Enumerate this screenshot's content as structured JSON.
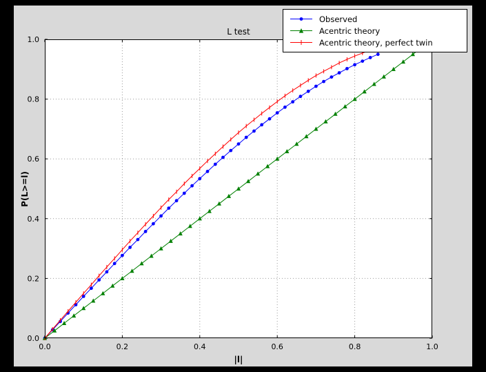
{
  "window": {
    "frame_color": "#000000",
    "figure_background": "#d9d9d9",
    "plot_background": "#ffffff"
  },
  "chart_data": {
    "type": "line",
    "title": "L test",
    "xlabel": "|l|",
    "ylabel": "P(L>=l)",
    "xlim": [
      0.0,
      1.0
    ],
    "ylim": [
      0.0,
      1.0
    ],
    "xticks": [
      0.0,
      0.2,
      0.4,
      0.6,
      0.8,
      1.0
    ],
    "yticks": [
      0.0,
      0.2,
      0.4,
      0.6,
      0.8,
      1.0
    ],
    "xtick_labels": [
      "0.0",
      "0.2",
      "0.4",
      "0.6",
      "0.8",
      "1.0"
    ],
    "ytick_labels": [
      "0.0",
      "0.2",
      "0.4",
      "0.6",
      "0.8",
      "1.0"
    ],
    "grid": true,
    "grid_style": "dotted",
    "legend_position": "upper-right",
    "series": [
      {
        "name": "Observed",
        "color": "#0000ff",
        "marker": "circle",
        "x": [
          0.0,
          0.02,
          0.04,
          0.06,
          0.08,
          0.1,
          0.12,
          0.14,
          0.16,
          0.18,
          0.2,
          0.22,
          0.24,
          0.26,
          0.28,
          0.3,
          0.32,
          0.34,
          0.36,
          0.38,
          0.4,
          0.42,
          0.44,
          0.46,
          0.48,
          0.5,
          0.52,
          0.54,
          0.56,
          0.58,
          0.6,
          0.62,
          0.64,
          0.66,
          0.68,
          0.7,
          0.72,
          0.74,
          0.76,
          0.78,
          0.8,
          0.82,
          0.84,
          0.86
        ],
        "y": [
          0.0,
          0.028,
          0.056,
          0.084,
          0.112,
          0.14,
          0.167,
          0.195,
          0.222,
          0.25,
          0.277,
          0.304,
          0.33,
          0.357,
          0.383,
          0.409,
          0.435,
          0.46,
          0.485,
          0.51,
          0.534,
          0.558,
          0.582,
          0.605,
          0.628,
          0.65,
          0.672,
          0.693,
          0.714,
          0.734,
          0.754,
          0.773,
          0.791,
          0.809,
          0.826,
          0.843,
          0.859,
          0.874,
          0.888,
          0.902,
          0.915,
          0.927,
          0.939,
          0.95
        ]
      },
      {
        "name": "Acentric theory",
        "color": "#008000",
        "marker": "triangle_up",
        "x": [
          0.0,
          0.025,
          0.05,
          0.075,
          0.1,
          0.125,
          0.15,
          0.175,
          0.2,
          0.225,
          0.25,
          0.275,
          0.3,
          0.325,
          0.35,
          0.375,
          0.4,
          0.425,
          0.45,
          0.475,
          0.5,
          0.525,
          0.55,
          0.575,
          0.6,
          0.625,
          0.65,
          0.675,
          0.7,
          0.725,
          0.75,
          0.775,
          0.8,
          0.825,
          0.85,
          0.875,
          0.9,
          0.925,
          0.95,
          0.975
        ],
        "y": [
          0.0,
          0.025,
          0.05,
          0.075,
          0.1,
          0.125,
          0.15,
          0.175,
          0.2,
          0.225,
          0.25,
          0.275,
          0.3,
          0.325,
          0.35,
          0.375,
          0.4,
          0.425,
          0.45,
          0.475,
          0.5,
          0.525,
          0.55,
          0.575,
          0.6,
          0.625,
          0.65,
          0.675,
          0.7,
          0.725,
          0.75,
          0.775,
          0.8,
          0.825,
          0.85,
          0.875,
          0.9,
          0.925,
          0.95,
          0.975
        ]
      },
      {
        "name": "Acentric theory, perfect twin",
        "color": "#ff0000",
        "marker": "vline",
        "x": [
          0.0,
          0.02,
          0.04,
          0.06,
          0.08,
          0.1,
          0.12,
          0.14,
          0.16,
          0.18,
          0.2,
          0.22,
          0.24,
          0.26,
          0.28,
          0.3,
          0.32,
          0.34,
          0.36,
          0.38,
          0.4,
          0.42,
          0.44,
          0.46,
          0.48,
          0.5,
          0.52,
          0.54,
          0.56,
          0.58,
          0.6,
          0.62,
          0.64,
          0.66,
          0.68,
          0.7,
          0.72,
          0.74,
          0.76,
          0.78,
          0.8,
          0.82,
          0.84
        ],
        "y": [
          0.0,
          0.03,
          0.06,
          0.09,
          0.12,
          0.15,
          0.179,
          0.209,
          0.238,
          0.267,
          0.296,
          0.325,
          0.353,
          0.381,
          0.409,
          0.437,
          0.464,
          0.49,
          0.517,
          0.543,
          0.568,
          0.593,
          0.617,
          0.641,
          0.665,
          0.688,
          0.71,
          0.731,
          0.752,
          0.772,
          0.792,
          0.811,
          0.829,
          0.846,
          0.863,
          0.879,
          0.893,
          0.907,
          0.921,
          0.933,
          0.944,
          0.954,
          0.964
        ]
      }
    ]
  }
}
